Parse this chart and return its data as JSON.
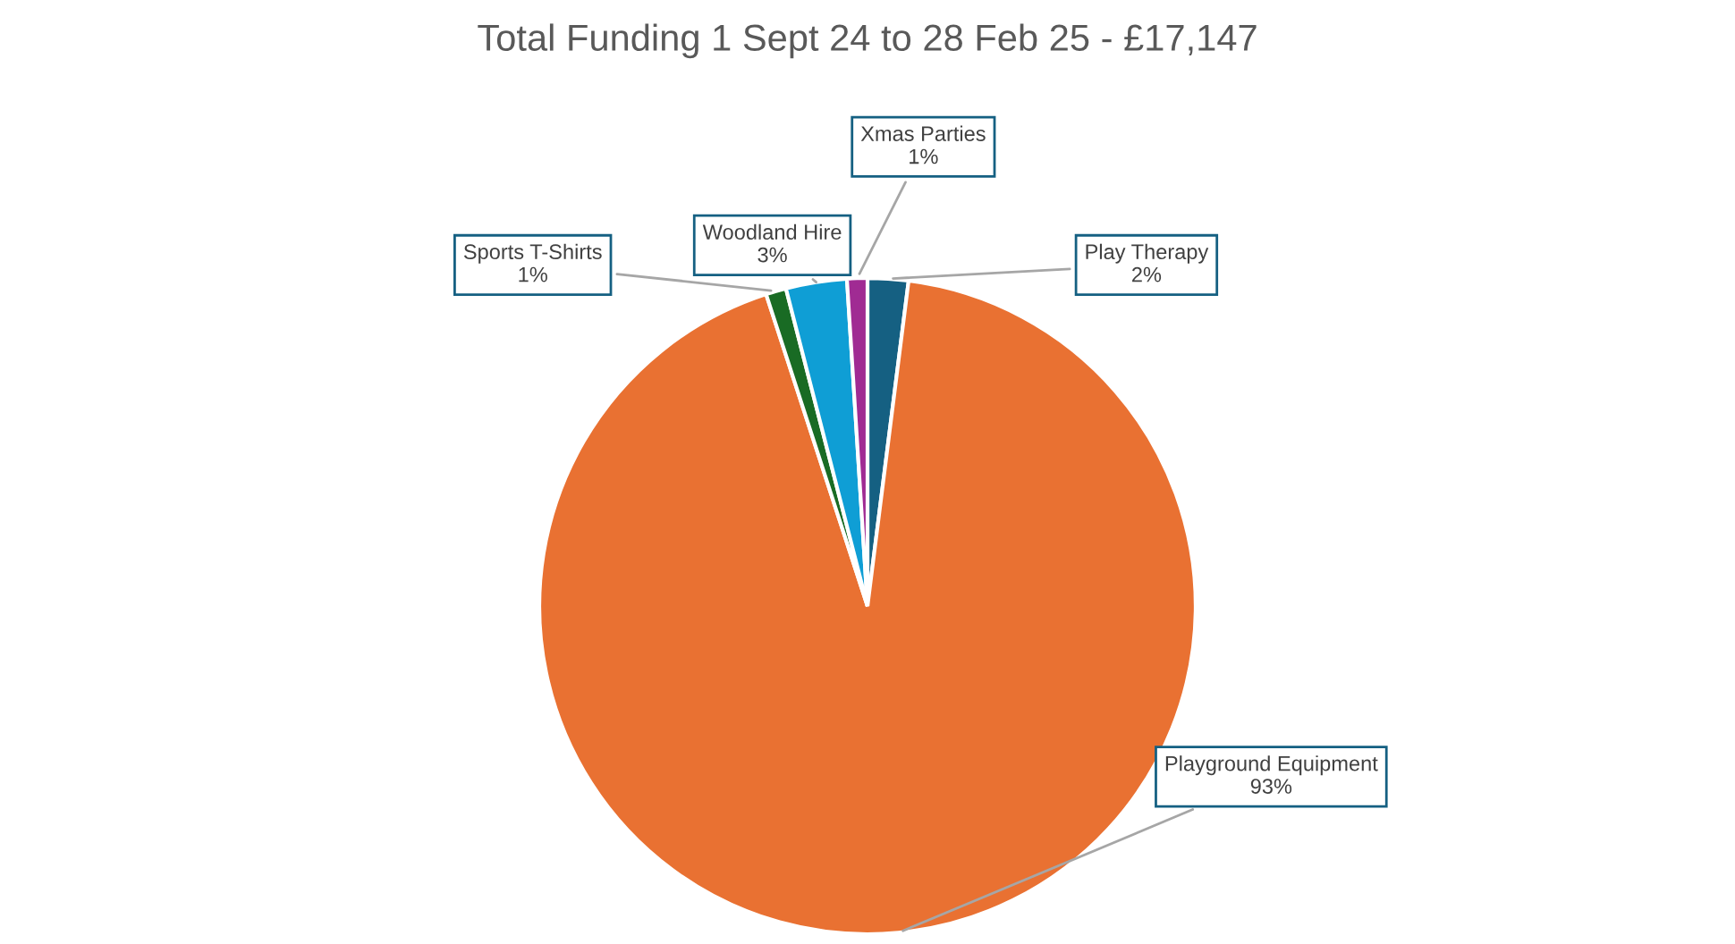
{
  "chart_data": {
    "type": "pie",
    "title": "Total Funding 1 Sept 24 to 28 Feb 25 - £17,147",
    "categories": [
      "Play Therapy",
      "Playground Equipment",
      "Sports T-Shirts",
      "Woodland Hire",
      "Xmas Parties"
    ],
    "values": [
      2,
      93,
      1,
      3,
      1
    ],
    "value_labels": [
      "2%",
      "93%",
      "1%",
      "3%",
      "1%"
    ],
    "colors": [
      "#156082",
      "#e97132",
      "#196b24",
      "#0f9ed5",
      "#a02b93"
    ]
  }
}
